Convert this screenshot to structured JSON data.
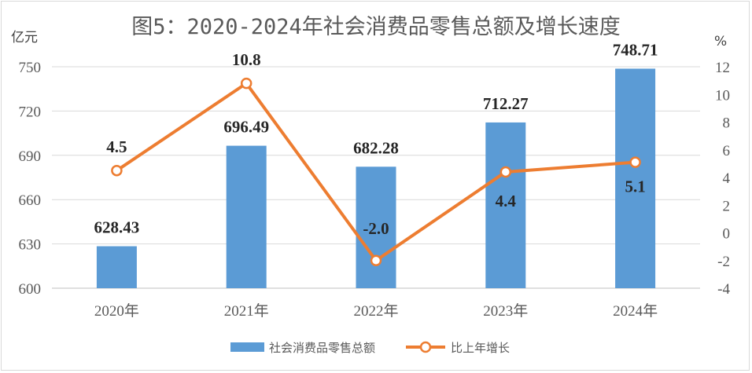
{
  "chart_data": {
    "type": "bar+line",
    "title": "图5：2020-2024年社会消费品零售总额及增长速度",
    "categories": [
      "2020年",
      "2021年",
      "2022年",
      "2023年",
      "2024年"
    ],
    "y_left": {
      "unit": "亿元",
      "ylim": [
        600,
        750
      ],
      "ticks": [
        600,
        630,
        660,
        690,
        720,
        750
      ]
    },
    "y_right": {
      "unit": "%",
      "ylim": [
        -4,
        12
      ],
      "ticks": [
        -4,
        -2,
        0,
        2,
        4,
        6,
        8,
        10,
        12
      ]
    },
    "series": [
      {
        "name": "社会消费品零售总额",
        "type": "bar",
        "axis": "left",
        "color": "#5b9bd5",
        "values": [
          628.43,
          696.49,
          682.28,
          712.27,
          748.71
        ],
        "labels": [
          "628.43",
          "696.49",
          "682.28",
          "712.27",
          "748.71"
        ]
      },
      {
        "name": "比上年增长",
        "type": "line",
        "axis": "right",
        "color": "#ed7d31",
        "values": [
          4.5,
          10.8,
          -2.0,
          4.4,
          5.1
        ],
        "labels": [
          "4.5",
          "10.8",
          "-2.0",
          "4.4",
          "5.1"
        ]
      }
    ],
    "grid": "horizontal",
    "legend": "bottom"
  }
}
